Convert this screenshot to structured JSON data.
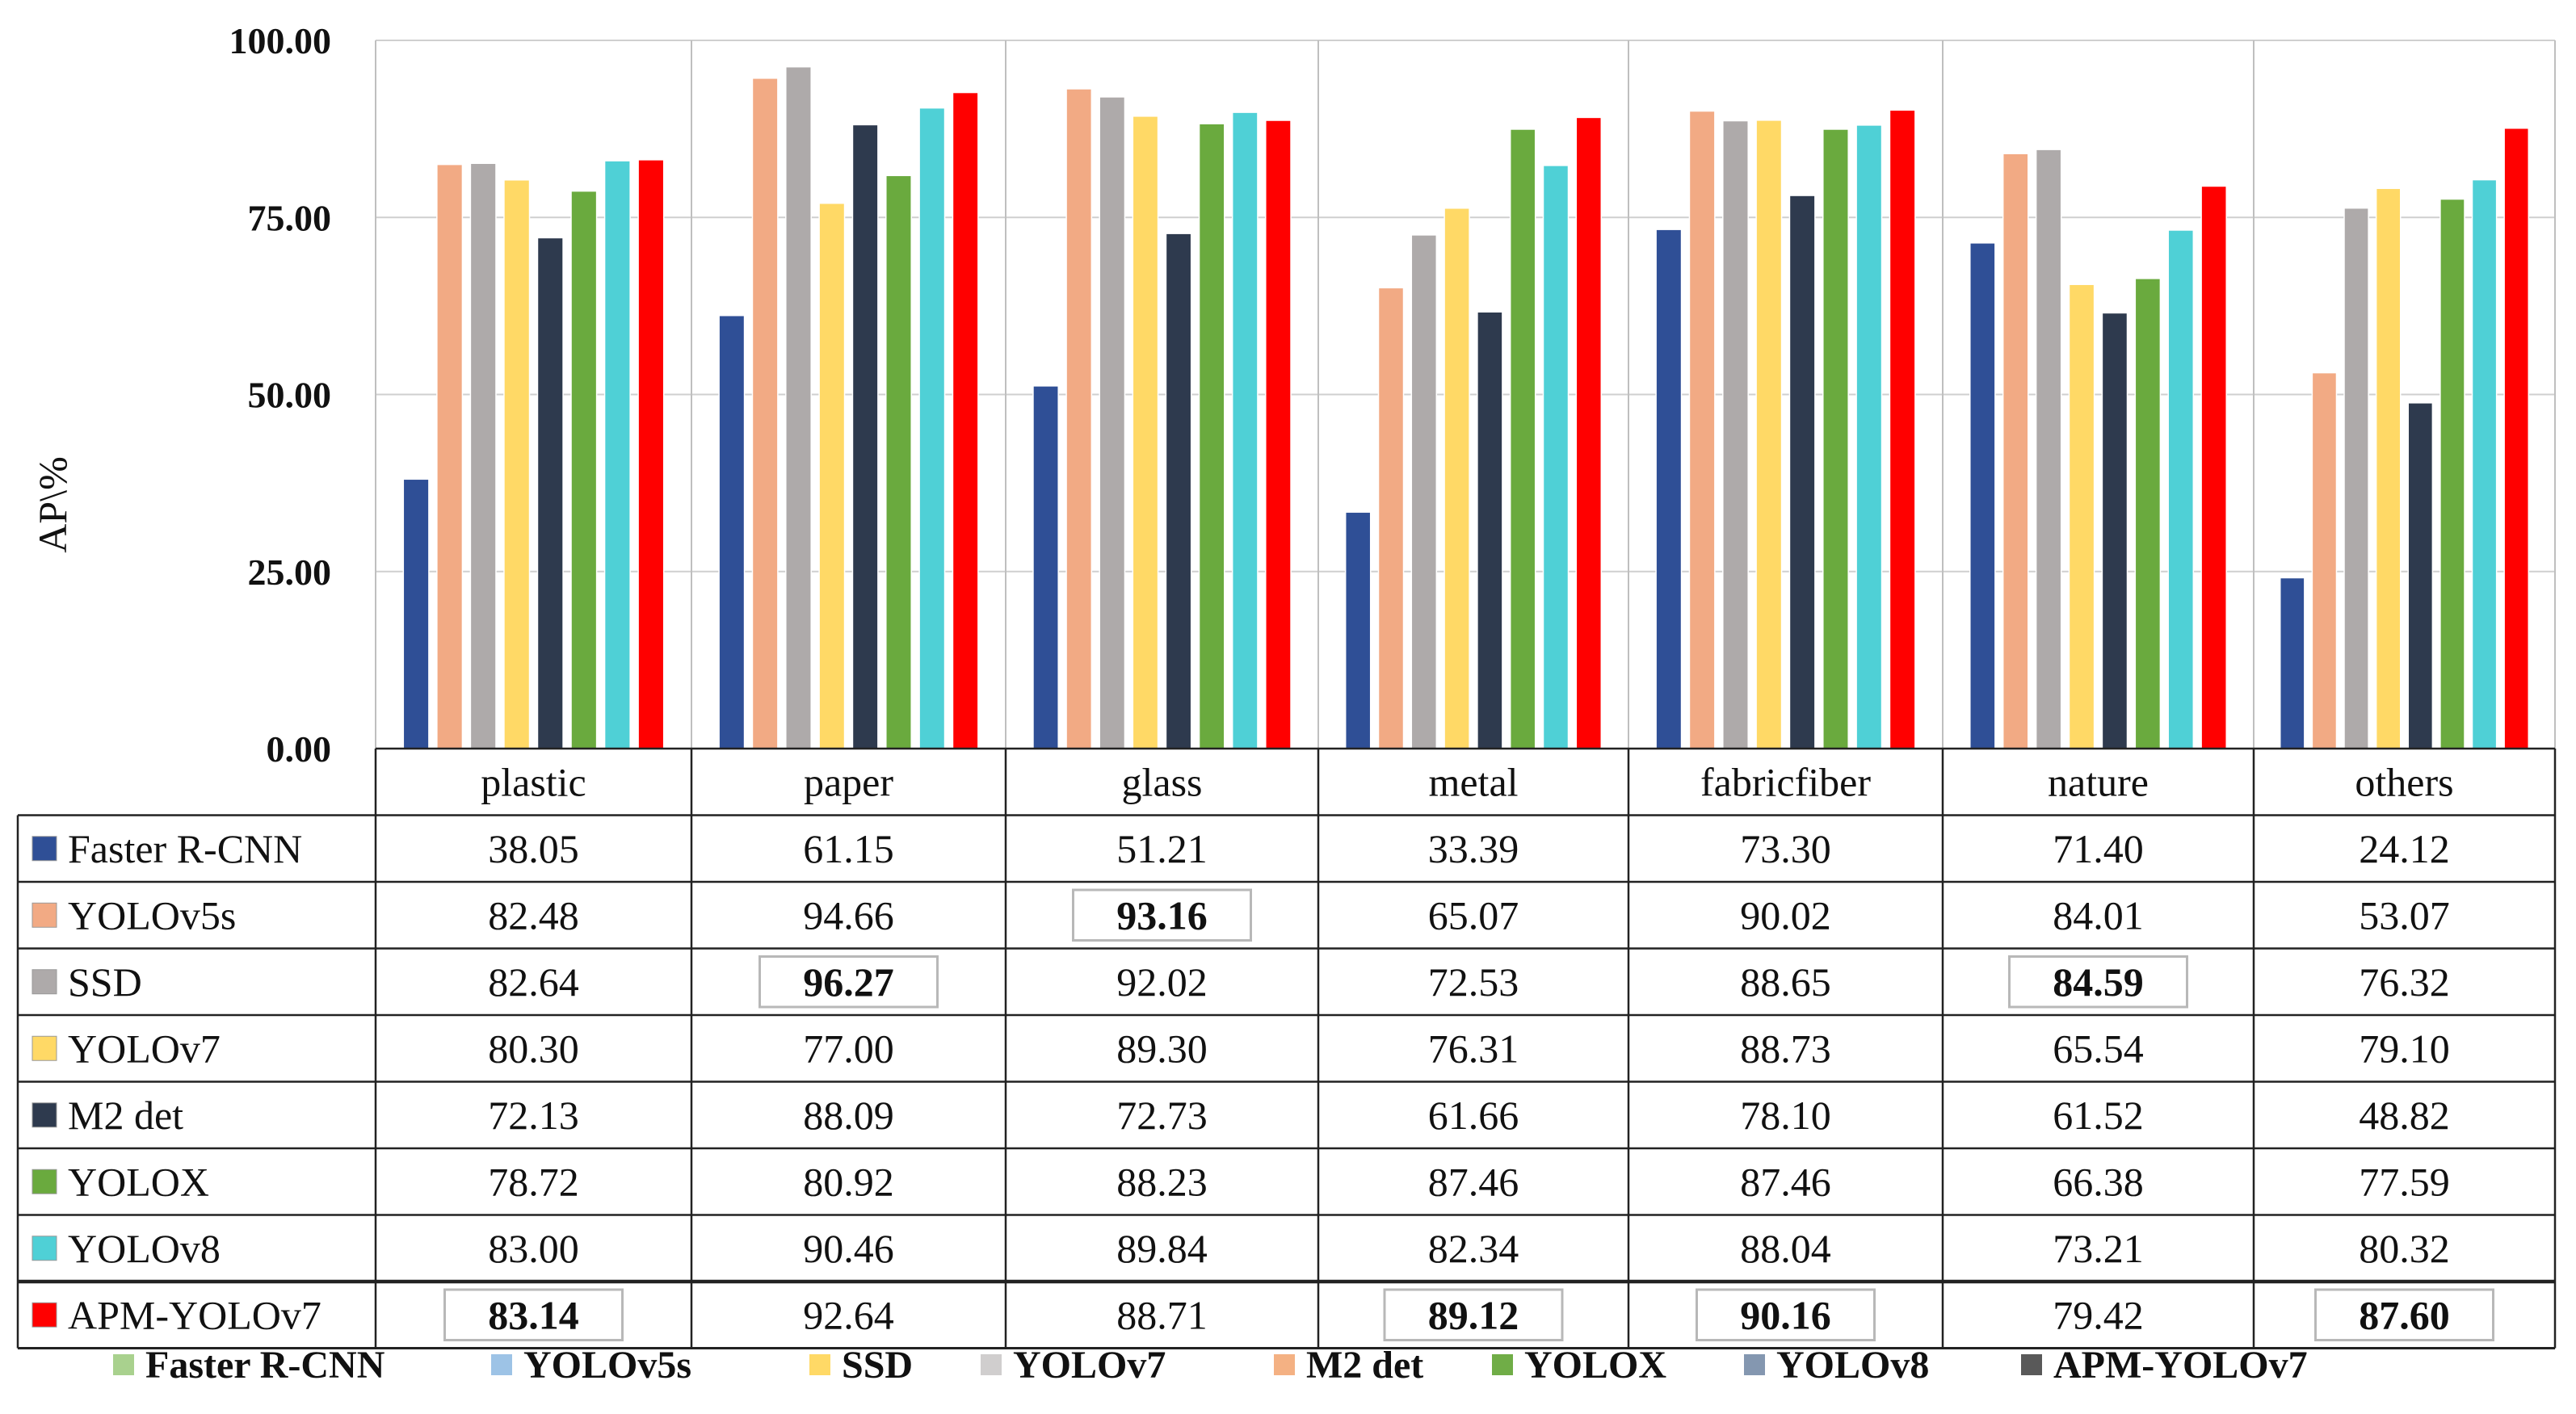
{
  "chart_data": {
    "type": "bar",
    "title": "",
    "xlabel": "",
    "ylabel": "AP\\%",
    "ylim": [
      0,
      100
    ],
    "yticks": [
      "0.00",
      "25.00",
      "50.00",
      "75.00",
      "100.00"
    ],
    "grid": true,
    "categories": [
      "plastic",
      "paper",
      "glass",
      "metal",
      "fabricfiber",
      "nature",
      "others"
    ],
    "series": [
      {
        "name": "Faster R-CNN",
        "color": "#2f4f96",
        "values": [
          38.05,
          61.15,
          51.21,
          33.39,
          73.3,
          71.4,
          24.12
        ],
        "labels": [
          "38.05",
          "61.15",
          "51.21",
          "33.39",
          "73.30",
          "71.40",
          "24.12"
        ]
      },
      {
        "name": "YOLOv5s",
        "color": "#f2aa84",
        "values": [
          82.48,
          94.66,
          93.16,
          65.07,
          90.02,
          84.01,
          53.07
        ],
        "labels": [
          "82.48",
          "94.66",
          "93.16",
          "65.07",
          "90.02",
          "84.01",
          "53.07"
        ]
      },
      {
        "name": "SSD",
        "color": "#aeaaaa",
        "values": [
          82.64,
          96.27,
          92.02,
          72.53,
          88.65,
          84.59,
          76.32
        ],
        "labels": [
          "82.64",
          "96.27",
          "92.02",
          "72.53",
          "88.65",
          "84.59",
          "76.32"
        ]
      },
      {
        "name": "YOLOv7",
        "color": "#ffd966",
        "values": [
          80.3,
          77.0,
          89.3,
          76.31,
          88.73,
          65.54,
          79.1
        ],
        "labels": [
          "80.30",
          "77.00",
          "89.30",
          "76.31",
          "88.73",
          "65.54",
          "79.10"
        ]
      },
      {
        "name": "M2 det",
        "color": "#2e3a4e",
        "values": [
          72.13,
          88.09,
          72.73,
          61.66,
          78.1,
          61.52,
          48.82
        ],
        "labels": [
          "72.13",
          "88.09",
          "72.73",
          "61.66",
          "78.10",
          "61.52",
          "48.82"
        ]
      },
      {
        "name": "YOLOX",
        "color": "#6aaa3e",
        "values": [
          78.72,
          80.92,
          88.23,
          87.46,
          87.46,
          66.38,
          77.59
        ],
        "labels": [
          "78.72",
          "80.92",
          "88.23",
          "87.46",
          "87.46",
          "66.38",
          "77.59"
        ]
      },
      {
        "name": "YOLOv8",
        "color": "#4fd0d6",
        "values": [
          83.0,
          90.46,
          89.84,
          82.34,
          88.04,
          73.21,
          80.32
        ],
        "labels": [
          "83.00",
          "90.46",
          "89.84",
          "82.34",
          "88.04",
          "73.21",
          "80.32"
        ]
      },
      {
        "name": "APM-YOLOv7",
        "color": "#ff0000",
        "values": [
          83.14,
          92.64,
          88.71,
          89.12,
          90.16,
          79.42,
          87.6
        ],
        "labels": [
          "83.14",
          "92.64",
          "88.71",
          "89.12",
          "90.16",
          "79.42",
          "87.60"
        ]
      }
    ],
    "highlighted": [
      {
        "series": "APM-YOLOv7",
        "category": "plastic"
      },
      {
        "series": "SSD",
        "category": "paper"
      },
      {
        "series": "YOLOv5s",
        "category": "glass"
      },
      {
        "series": "APM-YOLOv7",
        "category": "metal"
      },
      {
        "series": "APM-YOLOv7",
        "category": "fabricfiber"
      },
      {
        "series": "SSD",
        "category": "nature"
      },
      {
        "series": "APM-YOLOv7",
        "category": "others"
      }
    ],
    "bottom_legend": [
      {
        "name": "Faster R-CNN",
        "color": "#a9d18e"
      },
      {
        "name": "YOLOv5s",
        "color": "#9dc3e6"
      },
      {
        "name": "SSD",
        "color": "#ffd966"
      },
      {
        "name": "YOLOv7",
        "color": "#d0cece"
      },
      {
        "name": "M2 det",
        "color": "#f4b183"
      },
      {
        "name": "YOLOX",
        "color": "#70ad47"
      },
      {
        "name": "YOLOv8",
        "color": "#8497b0"
      },
      {
        "name": "APM-YOLOv7",
        "color": "#595959"
      }
    ],
    "legend_position": "bottom"
  }
}
